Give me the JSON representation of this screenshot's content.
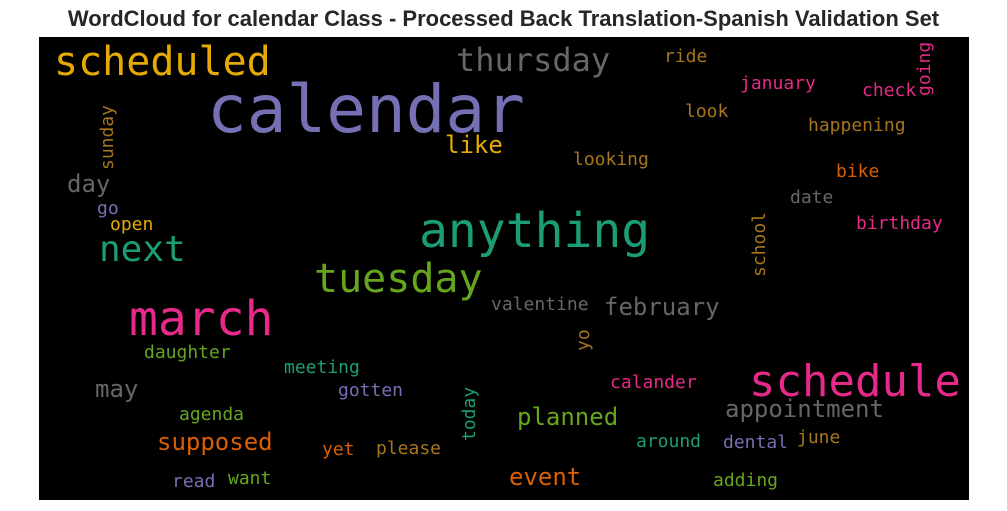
{
  "title": "WordCloud for calendar Class - Processed Back Translation-Spanish Validation Set",
  "chart_data": {
    "type": "wordcloud",
    "background": "#000000",
    "colormap": "Dark2",
    "words": [
      {
        "text": "calendar",
        "weight": 1.0,
        "color": "#7570b3",
        "rotate": 0
      },
      {
        "text": "anything",
        "weight": 0.72,
        "color": "#1b9e77",
        "rotate": 0
      },
      {
        "text": "march",
        "weight": 0.72,
        "color": "#e7298a",
        "rotate": 0
      },
      {
        "text": "schedule",
        "weight": 0.68,
        "color": "#e7298a",
        "rotate": 0
      },
      {
        "text": "scheduled",
        "weight": 0.6,
        "color": "#e6ab02",
        "rotate": 0
      },
      {
        "text": "tuesday",
        "weight": 0.6,
        "color": "#66a61e",
        "rotate": 0
      },
      {
        "text": "next",
        "weight": 0.55,
        "color": "#1b9e77",
        "rotate": 0
      },
      {
        "text": "thursday",
        "weight": 0.5,
        "color": "#666666",
        "rotate": 0
      },
      {
        "text": "appointment",
        "weight": 0.38,
        "color": "#666666",
        "rotate": 0
      },
      {
        "text": "february",
        "weight": 0.38,
        "color": "#666666",
        "rotate": 0
      },
      {
        "text": "supposed",
        "weight": 0.38,
        "color": "#d95f02",
        "rotate": 0
      },
      {
        "text": "planned",
        "weight": 0.38,
        "color": "#66a61e",
        "rotate": 0
      },
      {
        "text": "event",
        "weight": 0.38,
        "color": "#d95f02",
        "rotate": 0
      },
      {
        "text": "like",
        "weight": 0.36,
        "color": "#e6ab02",
        "rotate": 0
      },
      {
        "text": "may",
        "weight": 0.36,
        "color": "#666666",
        "rotate": 0
      },
      {
        "text": "day",
        "weight": 0.36,
        "color": "#666666",
        "rotate": 0
      },
      {
        "text": "ride",
        "weight": 0.27,
        "color": "#a6761d",
        "rotate": 0
      },
      {
        "text": "january",
        "weight": 0.27,
        "color": "#e7298a",
        "rotate": 0
      },
      {
        "text": "check",
        "weight": 0.27,
        "color": "#e7298a",
        "rotate": 0
      },
      {
        "text": "going",
        "weight": 0.27,
        "color": "#e7298a",
        "rotate": -90
      },
      {
        "text": "look",
        "weight": 0.27,
        "color": "#a6761d",
        "rotate": 0
      },
      {
        "text": "happening",
        "weight": 0.27,
        "color": "#a6761d",
        "rotate": 0
      },
      {
        "text": "sunday",
        "weight": 0.27,
        "color": "#a6761d",
        "rotate": -90
      },
      {
        "text": "looking",
        "weight": 0.27,
        "color": "#a6761d",
        "rotate": 0
      },
      {
        "text": "bike",
        "weight": 0.27,
        "color": "#d95f02",
        "rotate": 0
      },
      {
        "text": "date",
        "weight": 0.27,
        "color": "#666666",
        "rotate": 0
      },
      {
        "text": "go",
        "weight": 0.27,
        "color": "#7570b3",
        "rotate": 0
      },
      {
        "text": "open",
        "weight": 0.27,
        "color": "#e6ab02",
        "rotate": 0
      },
      {
        "text": "school",
        "weight": 0.27,
        "color": "#a6761d",
        "rotate": -90
      },
      {
        "text": "birthday",
        "weight": 0.27,
        "color": "#e7298a",
        "rotate": 0
      },
      {
        "text": "valentine",
        "weight": 0.27,
        "color": "#666666",
        "rotate": 0
      },
      {
        "text": "yo",
        "weight": 0.27,
        "color": "#a6761d",
        "rotate": -90
      },
      {
        "text": "daughter",
        "weight": 0.27,
        "color": "#66a61e",
        "rotate": 0
      },
      {
        "text": "meeting",
        "weight": 0.27,
        "color": "#1b9e77",
        "rotate": 0
      },
      {
        "text": "calander",
        "weight": 0.27,
        "color": "#e7298a",
        "rotate": 0
      },
      {
        "text": "gotten",
        "weight": 0.27,
        "color": "#7570b3",
        "rotate": 0
      },
      {
        "text": "today",
        "weight": 0.27,
        "color": "#1b9e77",
        "rotate": -90
      },
      {
        "text": "agenda",
        "weight": 0.27,
        "color": "#66a61e",
        "rotate": 0
      },
      {
        "text": "around",
        "weight": 0.27,
        "color": "#1b9e77",
        "rotate": 0
      },
      {
        "text": "dental",
        "weight": 0.27,
        "color": "#7570b3",
        "rotate": 0
      },
      {
        "text": "june",
        "weight": 0.27,
        "color": "#a6761d",
        "rotate": 0
      },
      {
        "text": "yet",
        "weight": 0.27,
        "color": "#d95f02",
        "rotate": 0
      },
      {
        "text": "please",
        "weight": 0.27,
        "color": "#a6761d",
        "rotate": 0
      },
      {
        "text": "read",
        "weight": 0.27,
        "color": "#7570b3",
        "rotate": 0
      },
      {
        "text": "want",
        "weight": 0.27,
        "color": "#66a61e",
        "rotate": 0
      },
      {
        "text": "adding",
        "weight": 0.27,
        "color": "#66a61e",
        "rotate": 0
      }
    ]
  }
}
